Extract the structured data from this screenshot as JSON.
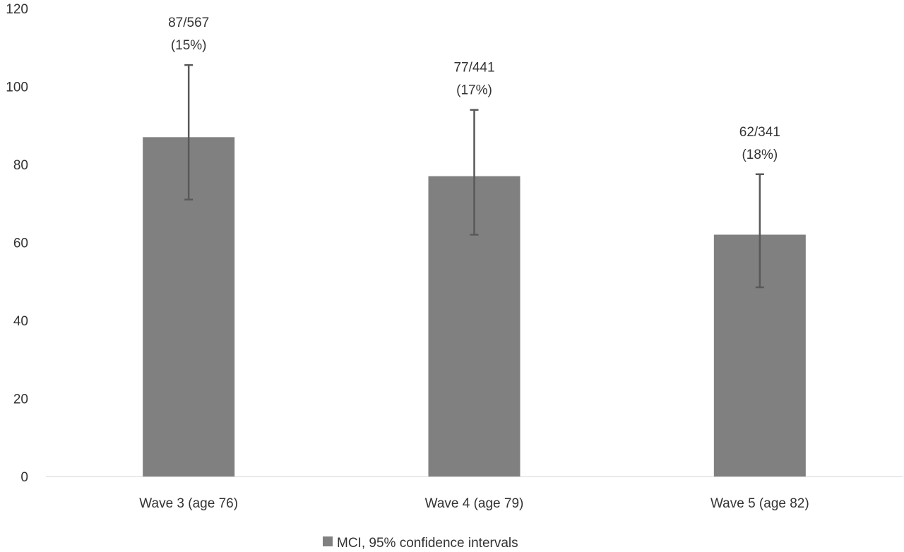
{
  "chart_data": {
    "type": "bar",
    "categories": [
      "Wave 3 (age 76)",
      "Wave 4 (age 79)",
      "Wave 5 (age 82)"
    ],
    "series": [
      {
        "name": "MCI, 95% confidence intervals",
        "values": [
          87,
          77,
          62
        ],
        "error_low": [
          71,
          62,
          48.5
        ],
        "error_high": [
          105.5,
          94,
          77.5
        ],
        "labels": [
          [
            "87/567",
            "(15%)"
          ],
          [
            "77/441",
            "(17%)"
          ],
          [
            "62/341",
            "(18%)"
          ]
        ]
      }
    ],
    "ylim": [
      0,
      120
    ],
    "yticks": [
      0,
      20,
      40,
      60,
      80,
      100,
      120
    ],
    "grid": false,
    "legend": "bottom",
    "colors": {
      "bar": "#808080",
      "error_bar": "#595959",
      "axis": "#d9d9d9",
      "text": "#333333"
    }
  }
}
